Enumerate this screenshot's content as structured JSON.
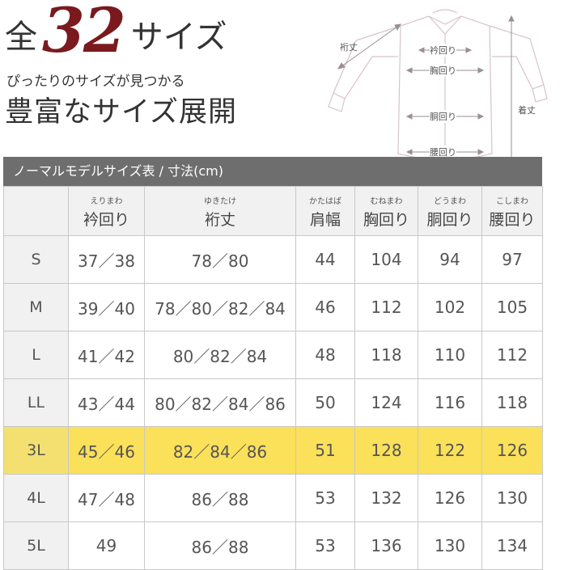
{
  "header": {
    "prefix": "全",
    "number": "32",
    "suffix": "サイズ",
    "subtitle": "ぴったりのサイズが見つかる",
    "title": "豊富なサイズ展開"
  },
  "diagram": {
    "labels": {
      "sleeve": "裄丈",
      "neck": "衿回り",
      "chest": "胸回り",
      "waist": "胴回り",
      "hip": "腰回り",
      "length": "着丈"
    }
  },
  "table": {
    "caption": "ノーマルモデルサイズ表 / 寸法(cm)",
    "columns": [
      {
        "ruby": "",
        "label": ""
      },
      {
        "ruby": "えりまわ",
        "label": "衿回り"
      },
      {
        "ruby": "ゆきたけ",
        "label": "裄丈"
      },
      {
        "ruby": "かたはば",
        "label": "肩幅"
      },
      {
        "ruby": "むねまわ",
        "label": "胸回り"
      },
      {
        "ruby": "どうまわ",
        "label": "胴回り"
      },
      {
        "ruby": "こしまわ",
        "label": "腰回り"
      }
    ],
    "rows": [
      {
        "size": "S",
        "neck": "37／38",
        "sleeve": "78／80",
        "shoulder": "44",
        "chest": "104",
        "waist": "94",
        "hip": "97"
      },
      {
        "size": "M",
        "neck": "39／40",
        "sleeve": "78／80／82／84",
        "shoulder": "46",
        "chest": "112",
        "waist": "102",
        "hip": "105"
      },
      {
        "size": "L",
        "neck": "41／42",
        "sleeve": "80／82／84",
        "shoulder": "48",
        "chest": "118",
        "waist": "110",
        "hip": "112"
      },
      {
        "size": "LL",
        "neck": "43／44",
        "sleeve": "80／82／84／86",
        "shoulder": "50",
        "chest": "124",
        "waist": "116",
        "hip": "118"
      },
      {
        "size": "3L",
        "neck": "45／46",
        "sleeve": "82／84／86",
        "shoulder": "51",
        "chest": "128",
        "waist": "122",
        "hip": "126"
      },
      {
        "size": "4L",
        "neck": "47／48",
        "sleeve": "86／88",
        "shoulder": "53",
        "chest": "132",
        "waist": "126",
        "hip": "130"
      },
      {
        "size": "5L",
        "neck": "49",
        "sleeve": "86／88",
        "shoulder": "53",
        "chest": "136",
        "waist": "130",
        "hip": "134"
      }
    ],
    "highlighted_row": "3L",
    "highlight_color": "#fbe05a"
  }
}
